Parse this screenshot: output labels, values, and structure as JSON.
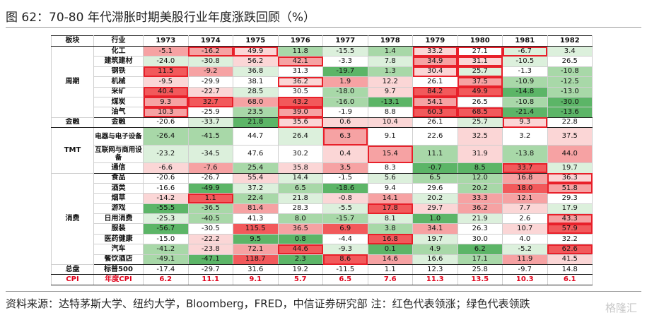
{
  "title": "图 62：70-80 年代滞胀时期美股行业年度涨跌回顾（%）",
  "footer": "资料来源：达特茅斯大学、纽约大学，Bloomberg，FRED，中信证券研究部  注：红色代表领涨；绿色代表领跌",
  "watermark": "格隆汇",
  "columns": [
    "板块",
    "行业",
    "1973",
    "1974",
    "1975",
    "1976",
    "1977",
    "1978",
    "1979",
    "1980",
    "1981",
    "1982"
  ],
  "colors": {
    "red_strong": "#f2595b",
    "red_mid": "#f6a2a3",
    "red_light": "#fbd6d6",
    "green_strong": "#5cb567",
    "green_mid": "#a8d8a8",
    "green_light": "#dcf0dc",
    "highlight": "#e8202a",
    "cpi": "#e0001a"
  },
  "groups": [
    {
      "sector": "周期",
      "rows": [
        {
          "industry": "化工",
          "values": [
            "-5.1",
            "-16.2",
            "49.9",
            "11.8",
            "-15.5",
            "1.4",
            "33.2",
            "27.1",
            "-6.7",
            "3.4"
          ]
        },
        {
          "industry": "建筑建材",
          "values": [
            "-24.0",
            "-30.8",
            "56.2",
            "42.1",
            "-3.3",
            "7.8",
            "34.9",
            "31.1",
            "-10.5",
            "26.5"
          ]
        },
        {
          "industry": "钢铁",
          "values": [
            "11.5",
            "-9.2",
            "36.8",
            "31.3",
            "-19.7",
            "1.3",
            "30.4",
            "25.7",
            "-1.3",
            "-10.8"
          ]
        },
        {
          "industry": "机械",
          "values": [
            "-9.5",
            "-29.9",
            "38.1",
            "36.2",
            "1.9",
            "12.2",
            "26.1",
            "37.5",
            "-10.9",
            "-12.5"
          ]
        },
        {
          "industry": "采矿",
          "values": [
            "40.4",
            "-22.7",
            "28.5",
            "30.5",
            "-18.0",
            "9.7",
            "84.2",
            "49.9",
            "-14.8",
            "-13.0"
          ]
        },
        {
          "industry": "煤炭",
          "values": [
            "9.3",
            "32.7",
            "68.0",
            "43.2",
            "-16.0",
            "-13.1",
            "54.1",
            "26.5",
            "-10.8",
            "-30.0"
          ]
        },
        {
          "industry": "油气",
          "values": [
            "10.3",
            "-25.9",
            "23.5",
            "39.0",
            "-1.9",
            "8.8",
            "60.3",
            "68.5",
            "-21.4",
            "-13.6"
          ]
        }
      ]
    },
    {
      "sector": "金融",
      "rows": [
        {
          "industry": "金融",
          "values": [
            "-20.6",
            "-33.7",
            "21.8",
            "35.6",
            "0.6",
            "10.4",
            "26.1",
            "25.7",
            "9.3",
            "22.8"
          ]
        }
      ]
    },
    {
      "sector": "TMT",
      "rows": [
        {
          "industry": "电器与电子设备",
          "values": [
            "-26.4",
            "-41.5",
            "44.7",
            "26.4",
            "6.3",
            "9.1",
            "22.6",
            "32.5",
            "3.2",
            "37.5"
          ]
        },
        {
          "industry": "互联网与商用设备",
          "values": [
            "-23.2",
            "-34.5",
            "47.6",
            "30.2",
            "0.4",
            "15.4",
            "11.1",
            "31.9",
            "-13.8",
            "44.0"
          ]
        },
        {
          "industry": "通信",
          "values": [
            "-6.6",
            "-7.6",
            "25.4",
            "35.8",
            "3.5",
            "8.3",
            "-0.7",
            "8.5",
            "33.7",
            "19.7"
          ]
        }
      ]
    },
    {
      "sector": "消费",
      "rows": [
        {
          "industry": "食品",
          "values": [
            "-20.6",
            "-26.7",
            "55.4",
            "14.4",
            "-1.5",
            "5.6",
            "6.5",
            "12.0",
            "16.8",
            "36.3"
          ]
        },
        {
          "industry": "酒类",
          "values": [
            "-16.6",
            "-49.9",
            "37.2",
            "6.5",
            "-18.6",
            "9.4",
            "29.6",
            "20.2",
            "18.0",
            "51.8"
          ]
        },
        {
          "industry": "烟草",
          "values": [
            "-14.2",
            "1.1",
            "22.4",
            "21.8",
            "-0.8",
            "14.1",
            "20.2",
            "33.3",
            "12.1",
            "29.3"
          ]
        },
        {
          "industry": "游戏",
          "values": [
            "-55.5",
            "-36.5",
            "81.4",
            "28.3",
            "-5.5",
            "17.8",
            "29.7",
            "36.2",
            "7.7",
            "17.9"
          ]
        },
        {
          "industry": "日用消费",
          "values": [
            "-25.3",
            "-40.5",
            "41.3",
            "8.0",
            "-15.7",
            "8.1",
            "1.0",
            "21.9",
            "2.6",
            "43.3"
          ]
        },
        {
          "industry": "服装",
          "values": [
            "-56.7",
            "-30.5",
            "115.5",
            "36.5",
            "6.9",
            "3.8",
            "34.1",
            "26.3",
            "10.7",
            "57.9"
          ]
        },
        {
          "industry": "医药健康",
          "values": [
            "-15.0",
            "-22.2",
            "9.5",
            "0.8",
            "-4.4",
            "16.8",
            "19.7",
            "30.0",
            "4.0",
            "32.2"
          ]
        },
        {
          "industry": "汽车",
          "values": [
            "-41.2",
            "-23.8",
            "72.1",
            "44.6",
            "-9.3",
            "0.1",
            "4.9",
            "6.2",
            "-5.2",
            "62.6"
          ]
        },
        {
          "industry": "餐饮酒店",
          "values": [
            "-49.1",
            "-47.1",
            "118.7",
            "2.3",
            "8.6",
            "14.6",
            "16.6",
            "17.1",
            "11.9",
            "41.5"
          ]
        }
      ]
    },
    {
      "sector": "总盘",
      "rows": [
        {
          "industry": "标普500",
          "values": [
            "-17.4",
            "-29.7",
            "31.6",
            "19.2",
            "-11.5",
            "1.1",
            "12.3",
            "25.8",
            "-9.7",
            "14.8"
          ]
        }
      ]
    },
    {
      "sector": "CPI",
      "cpi": true,
      "rows": [
        {
          "industry": "年度CPI",
          "values": [
            "6.2",
            "11.1",
            "9.1",
            "5.7",
            "6.5",
            "7.6",
            "11.3",
            "13.5",
            "10.3",
            "6.1"
          ]
        }
      ]
    }
  ]
}
